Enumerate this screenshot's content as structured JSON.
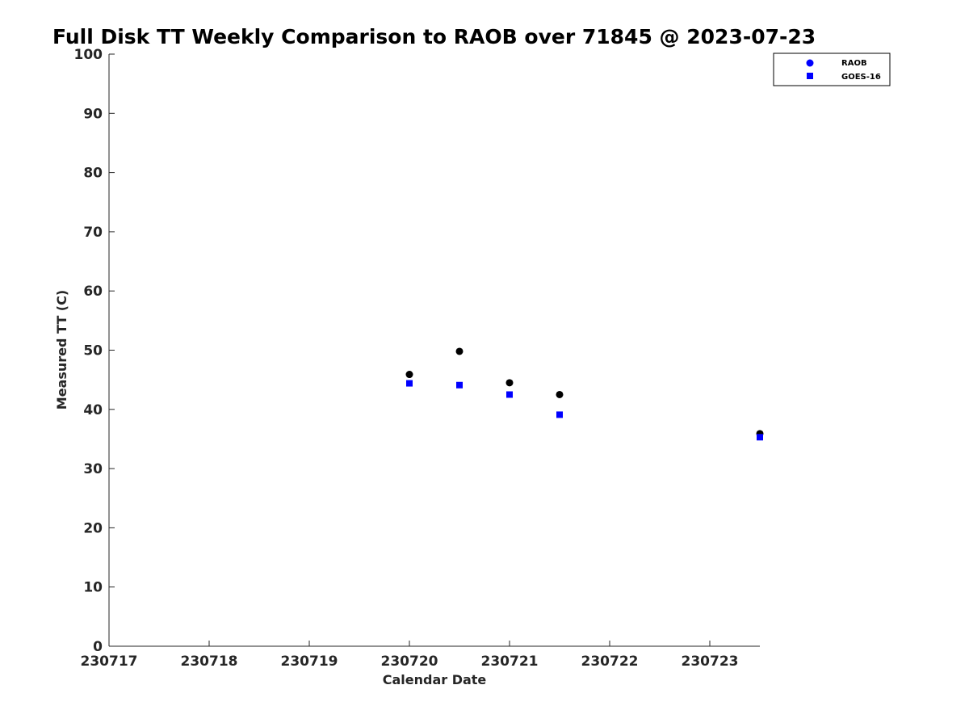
{
  "chart_data": {
    "type": "scatter",
    "title": "Full Disk TT Weekly Comparison to RAOB over 71845 @ 2023-07-23",
    "xlabel": "Calendar Date",
    "ylabel": "Measured TT (C)",
    "xlim": [
      230717,
      230723.5
    ],
    "ylim": [
      0,
      100
    ],
    "x_ticks": [
      230717,
      230718,
      230719,
      230720,
      230721,
      230722,
      230723
    ],
    "x_tick_labels": [
      "230717",
      "230718",
      "230719",
      "230720",
      "230721",
      "230722",
      "230723"
    ],
    "y_ticks": [
      0,
      10,
      20,
      30,
      40,
      50,
      60,
      70,
      80,
      90,
      100
    ],
    "y_tick_labels": [
      "0",
      "10",
      "20",
      "30",
      "40",
      "50",
      "60",
      "70",
      "80",
      "90",
      "100"
    ],
    "legend_position": "top-right",
    "series": [
      {
        "name": "RAOB",
        "marker": "circle",
        "color": "#000000",
        "legend_color": "#0000ff",
        "x": [
          230720.0,
          230720.5,
          230721.0,
          230721.5,
          230723.5
        ],
        "y": [
          45.9,
          49.8,
          44.5,
          42.5,
          35.9
        ]
      },
      {
        "name": "GOES-16",
        "marker": "square",
        "color": "#0000ff",
        "legend_color": "#0000ff",
        "x": [
          230720.0,
          230720.5,
          230721.0,
          230721.5,
          230723.5
        ],
        "y": [
          44.4,
          44.1,
          42.5,
          39.1,
          35.3
        ]
      }
    ]
  }
}
